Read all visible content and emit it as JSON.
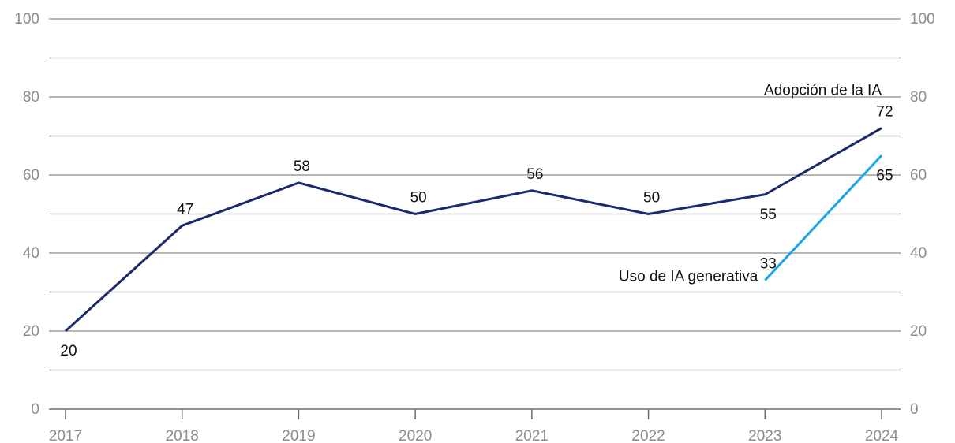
{
  "chart_data": {
    "type": "line",
    "x": [
      2017,
      2018,
      2019,
      2020,
      2021,
      2022,
      2023,
      2024
    ],
    "x_tick_labels": [
      "2017",
      "2018",
      "2019",
      "2020",
      "2021",
      "2022",
      "2023",
      "2024"
    ],
    "ylim": [
      0,
      100
    ],
    "y_tick_labels": [
      "0",
      "20",
      "40",
      "60",
      "80",
      "100"
    ],
    "y_ticks": [
      0,
      20,
      40,
      60,
      80,
      100
    ],
    "y_gridlines": [
      10,
      20,
      30,
      40,
      50,
      60,
      70,
      80,
      90,
      100
    ],
    "secondary_y_axis": true,
    "grid": "horizontal",
    "series": [
      {
        "name": "Adopción de la IA",
        "color": "#1a2a6c",
        "x": [
          2017,
          2018,
          2019,
          2020,
          2021,
          2022,
          2023,
          2024
        ],
        "values": [
          20,
          47,
          58,
          50,
          56,
          50,
          55,
          72
        ],
        "value_labels": [
          "20",
          "47",
          "58",
          "50",
          "56",
          "50",
          "55",
          "72"
        ]
      },
      {
        "name": "Uso de IA generativa",
        "color": "#1aa3e8",
        "x": [
          2023,
          2024
        ],
        "values": [
          33,
          65
        ],
        "value_labels": [
          "33",
          "65"
        ]
      }
    ]
  }
}
